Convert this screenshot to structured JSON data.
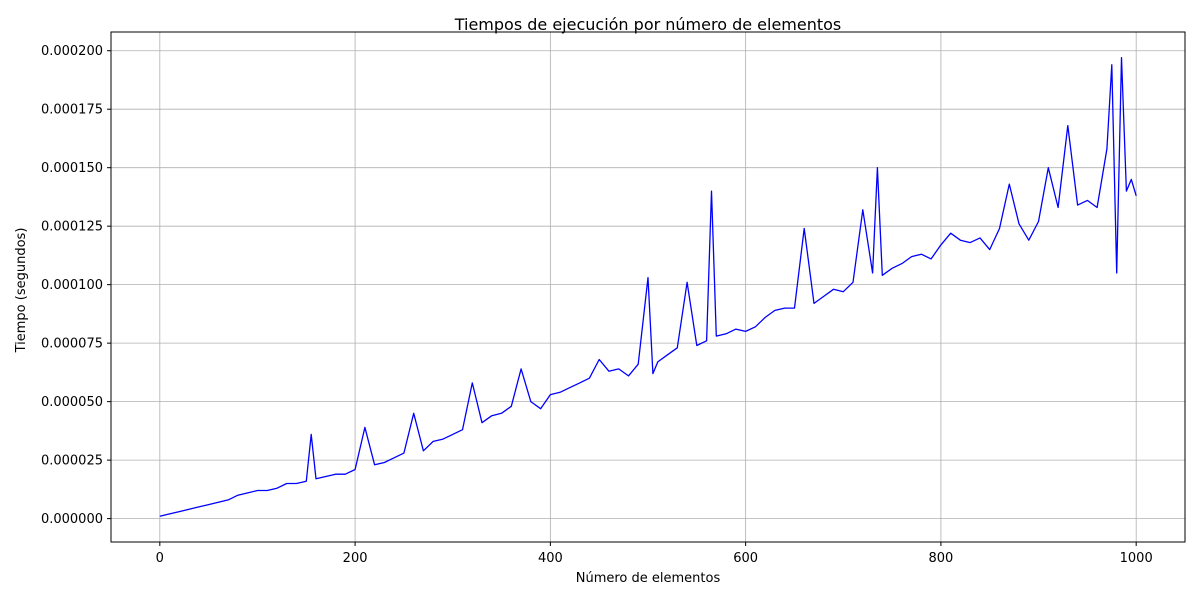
{
  "chart_data": {
    "type": "line",
    "title": "Tiempos de ejecución por número de elementos",
    "xlabel": "Número de elementos",
    "ylabel": "Tiempo (segundos)",
    "xlim": [
      -50,
      1050
    ],
    "ylim": [
      -1e-05,
      0.000208
    ],
    "grid": true,
    "color": "#0000ff",
    "x_ticks": [
      0,
      200,
      400,
      600,
      800,
      1000
    ],
    "x_tick_labels": [
      "0",
      "200",
      "400",
      "600",
      "800",
      "1000"
    ],
    "y_ticks": [
      0,
      2.5e-05,
      5e-05,
      7.5e-05,
      0.0001,
      0.000125,
      0.00015,
      0.000175,
      0.0002
    ],
    "y_tick_labels": [
      "0.000000",
      "0.000025",
      "0.000050",
      "0.000075",
      "0.000100",
      "0.000125",
      "0.000150",
      "0.000175",
      "0.000200"
    ],
    "series": [
      {
        "x": [
          0,
          10,
          20,
          30,
          40,
          50,
          60,
          70,
          80,
          90,
          100,
          110,
          120,
          130,
          140,
          150,
          155,
          160,
          170,
          180,
          190,
          200,
          210,
          220,
          230,
          240,
          250,
          260,
          270,
          280,
          290,
          300,
          310,
          320,
          330,
          340,
          350,
          360,
          370,
          380,
          390,
          400,
          410,
          420,
          430,
          440,
          450,
          460,
          470,
          480,
          490,
          500,
          505,
          510,
          520,
          530,
          540,
          550,
          560,
          565,
          570,
          580,
          590,
          600,
          610,
          620,
          630,
          640,
          650,
          660,
          670,
          680,
          690,
          700,
          710,
          720,
          730,
          735,
          740,
          750,
          760,
          770,
          780,
          790,
          800,
          810,
          820,
          830,
          840,
          850,
          860,
          870,
          880,
          890,
          900,
          910,
          920,
          930,
          940,
          950,
          960,
          970,
          975,
          980,
          985,
          990,
          995,
          1000
        ],
        "y": [
          1e-06,
          2e-06,
          3e-06,
          4e-06,
          5e-06,
          6e-06,
          7e-06,
          8e-06,
          1e-05,
          1.1e-05,
          1.2e-05,
          1.2e-05,
          1.3e-05,
          1.5e-05,
          1.5e-05,
          1.6e-05,
          3.6e-05,
          1.7e-05,
          1.8e-05,
          1.9e-05,
          1.9e-05,
          2.1e-05,
          3.9e-05,
          2.3e-05,
          2.4e-05,
          2.6e-05,
          2.8e-05,
          4.5e-05,
          2.9e-05,
          3.3e-05,
          3.4e-05,
          3.6e-05,
          3.8e-05,
          5.8e-05,
          4.1e-05,
          4.4e-05,
          4.5e-05,
          4.8e-05,
          6.4e-05,
          5e-05,
          4.7e-05,
          5.3e-05,
          5.4e-05,
          5.6e-05,
          5.8e-05,
          6e-05,
          6.8e-05,
          6.3e-05,
          6.4e-05,
          6.1e-05,
          6.6e-05,
          0.000103,
          6.2e-05,
          6.7e-05,
          7e-05,
          7.3e-05,
          0.000101,
          7.4e-05,
          7.6e-05,
          0.00014,
          7.8e-05,
          7.9e-05,
          8.1e-05,
          8e-05,
          8.2e-05,
          8.6e-05,
          8.9e-05,
          9e-05,
          9e-05,
          0.000124,
          9.2e-05,
          9.5e-05,
          9.8e-05,
          9.7e-05,
          0.000101,
          0.000132,
          0.000105,
          0.00015,
          0.000104,
          0.000107,
          0.000109,
          0.000112,
          0.000113,
          0.000111,
          0.000117,
          0.000122,
          0.000119,
          0.000118,
          0.00012,
          0.000115,
          0.000124,
          0.000143,
          0.000126,
          0.000119,
          0.000127,
          0.00015,
          0.000133,
          0.000168,
          0.000134,
          0.000136,
          0.000133,
          0.000158,
          0.000194,
          0.000105,
          0.000197,
          0.00014,
          0.000145,
          0.000138
        ]
      }
    ]
  }
}
